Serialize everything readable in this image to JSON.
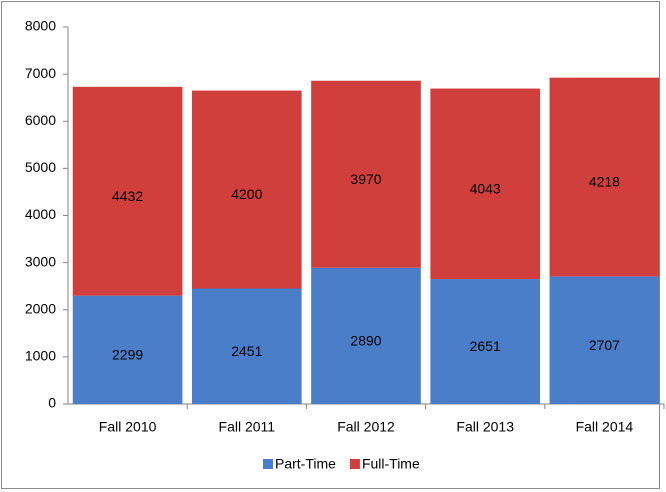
{
  "chart_data": {
    "type": "stacked_bar",
    "categories": [
      "Fall 2010",
      "Fall 2011",
      "Fall 2012",
      "Fall 2013",
      "Fall 2014"
    ],
    "series": [
      {
        "name": "Part-Time",
        "color": "#4a7ec8",
        "values": [
          2299,
          2451,
          2890,
          2651,
          2707
        ]
      },
      {
        "name": "Full-Time",
        "color": "#d13f3c",
        "values": [
          4432,
          4200,
          3970,
          4043,
          4218
        ]
      }
    ],
    "ylim": [
      0,
      8000
    ],
    "yticks": [
      0,
      1000,
      2000,
      3000,
      4000,
      5000,
      6000,
      7000,
      8000
    ],
    "grid": false,
    "legend": "bottom"
  }
}
